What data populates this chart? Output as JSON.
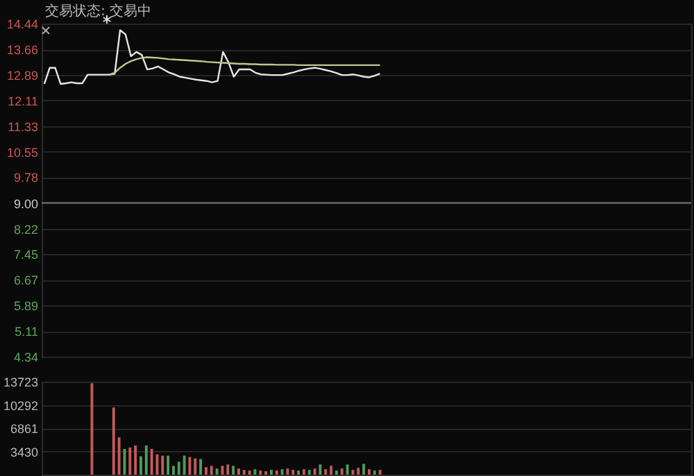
{
  "chart_data": [
    {
      "type": "line",
      "annotations": [
        "交易状态: 交易中"
      ],
      "categories": [
        null,
        null,
        null,
        null,
        null,
        null,
        null,
        null,
        null,
        null,
        null,
        null,
        null,
        null,
        null,
        null,
        null,
        null,
        null,
        null,
        null,
        null,
        null,
        null,
        null,
        null,
        null,
        null,
        null,
        null,
        null,
        null,
        null,
        null,
        null,
        null,
        null,
        null,
        null,
        null,
        null,
        null,
        null,
        null,
        null,
        null,
        null,
        null,
        null,
        null,
        null,
        null,
        null,
        null,
        null,
        null,
        null,
        null,
        null,
        null,
        null,
        null,
        null,
        null,
        null,
        null,
        null,
        null,
        null,
        null,
        null,
        null,
        null,
        null,
        null,
        null,
        null,
        null,
        null,
        null,
        null,
        null,
        null,
        null,
        null,
        null,
        null,
        null,
        null,
        null,
        null,
        null,
        null,
        null,
        null,
        null,
        null,
        null,
        null,
        null,
        null,
        null,
        null,
        null,
        null,
        null,
        null,
        null,
        null,
        null,
        null,
        null,
        null,
        null,
        null,
        null,
        null,
        null,
        null,
        null
      ],
      "series": [
        {
          "color": "#e6e6e6",
          "values": [
            12.61,
            13.1,
            13.1,
            12.61,
            12.63,
            12.66,
            12.63,
            12.63,
            12.89,
            12.89,
            12.89,
            12.89,
            12.89,
            12.92,
            14.24,
            14.11,
            13.45,
            13.58,
            13.49,
            13.05,
            13.08,
            13.14,
            13.05,
            12.96,
            12.9,
            12.83,
            12.8,
            12.77,
            12.74,
            12.72,
            12.7,
            12.66,
            12.7,
            13.58,
            13.27,
            12.83,
            13.05,
            13.05,
            13.05,
            12.95,
            12.9,
            12.89,
            12.88,
            12.88,
            12.88,
            12.92,
            12.96,
            13.01,
            13.05,
            13.08,
            13.1,
            13.07,
            13.03,
            12.99,
            12.94,
            12.88,
            12.88,
            12.9,
            12.87,
            12.83,
            12.81,
            12.86,
            12.92,
            null,
            null,
            null,
            null,
            null,
            null,
            null,
            null,
            null,
            null,
            null,
            null,
            null,
            null,
            null,
            null,
            null,
            null,
            null,
            null,
            null,
            null,
            null,
            null,
            null,
            null,
            null,
            null,
            null,
            null,
            null,
            null,
            null,
            null,
            null,
            null,
            null,
            null,
            null,
            null,
            null,
            null,
            null,
            null,
            null,
            null,
            null,
            null,
            null,
            null,
            null,
            null,
            null,
            null,
            null,
            null,
            null
          ]
        },
        {
          "color": "#c9c58f",
          "values": [
            null,
            null,
            null,
            null,
            null,
            null,
            null,
            null,
            null,
            null,
            null,
            null,
            12.89,
            12.95,
            13.1,
            13.22,
            13.3,
            13.36,
            13.4,
            13.42,
            13.41,
            13.4,
            13.38,
            13.36,
            13.35,
            13.34,
            13.33,
            13.32,
            13.31,
            13.3,
            13.28,
            13.27,
            13.26,
            13.25,
            13.24,
            13.23,
            13.22,
            13.22,
            13.21,
            13.21,
            13.2,
            13.2,
            13.2,
            13.19,
            13.19,
            13.19,
            13.19,
            13.18,
            13.18,
            13.18,
            13.18,
            13.18,
            13.18,
            13.18,
            13.18,
            13.18,
            13.18,
            13.18,
            13.18,
            13.18,
            13.18,
            13.18,
            13.18,
            null,
            null,
            null,
            null,
            null,
            null,
            null,
            null,
            null,
            null,
            null,
            null,
            null,
            null,
            null,
            null,
            null,
            null,
            null,
            null,
            null,
            null,
            null,
            null,
            null,
            null,
            null,
            null,
            null,
            null,
            null,
            null,
            null,
            null,
            null,
            null,
            null,
            null,
            null,
            null,
            null,
            null,
            null,
            null,
            null,
            null,
            null,
            null,
            null,
            null,
            null,
            null,
            null,
            null,
            null,
            null,
            null
          ]
        }
      ],
      "ylim": [
        4.34,
        14.44
      ],
      "yticks": [
        4.34,
        5.11,
        5.89,
        6.67,
        7.45,
        8.22,
        {
          "value": 9,
          "label": "9.00"
        },
        9.78,
        10.55,
        11.33,
        12.11,
        12.89,
        13.66,
        14.44
      ],
      "grid": "y",
      "tick_labels": "y",
      "ref_lines": [
        {
          "axis": "y",
          "value": 9.0,
          "color": "#5a5a5a"
        }
      ]
    },
    {
      "type": "bar",
      "categories": [
        null,
        null,
        null,
        null,
        null,
        null,
        null,
        null,
        null,
        null,
        null,
        null,
        null,
        null,
        null,
        null,
        null,
        null,
        null,
        null,
        null,
        null,
        null,
        null,
        null,
        null,
        null,
        null,
        null,
        null,
        null,
        null,
        null,
        null,
        null,
        null,
        null,
        null,
        null,
        null,
        null,
        null,
        null,
        null,
        null,
        null,
        null,
        null,
        null,
        null,
        null,
        null,
        null,
        null,
        null,
        null,
        null,
        null,
        null,
        null,
        null,
        null,
        null,
        null,
        null,
        null,
        null,
        null,
        null,
        null,
        null,
        null,
        null,
        null,
        null,
        null,
        null,
        null,
        null,
        null,
        null,
        null,
        null,
        null,
        null,
        null,
        null,
        null,
        null,
        null,
        null,
        null,
        null,
        null,
        null,
        null,
        null,
        null,
        null,
        null,
        null,
        null,
        null,
        null,
        null,
        null,
        null,
        null,
        null,
        null,
        null,
        null,
        null,
        null,
        null,
        null,
        null,
        null,
        null,
        null
      ],
      "values": [
        null,
        null,
        null,
        null,
        null,
        null,
        null,
        null,
        null,
        13500,
        null,
        null,
        null,
        9900,
        5500,
        3800,
        4000,
        4300,
        2700,
        4300,
        3800,
        3000,
        2800,
        2800,
        1300,
        1900,
        2800,
        2600,
        2400,
        2300,
        1100,
        1300,
        900,
        1300,
        1500,
        1300,
        900,
        700,
        600,
        800,
        600,
        500,
        700,
        600,
        800,
        900,
        700,
        600,
        800,
        700,
        900,
        1500,
        800,
        1300,
        600,
        900,
        1500,
        700,
        1000,
        1600,
        800,
        600,
        700,
        null,
        null,
        null,
        null,
        null,
        null,
        null,
        null,
        null,
        null,
        null,
        null,
        null,
        null,
        null,
        null,
        null,
        null,
        null,
        null,
        null,
        null,
        null,
        null,
        null,
        null,
        null,
        null,
        null,
        null,
        null,
        null,
        null,
        null,
        null,
        null,
        null,
        null,
        null,
        null,
        null,
        null,
        null,
        null,
        null,
        null,
        null,
        null,
        null,
        null,
        null,
        null,
        null,
        null,
        null,
        null,
        null
      ],
      "colors": [
        null,
        null,
        null,
        null,
        null,
        null,
        null,
        null,
        null,
        "#c35a5a",
        null,
        null,
        null,
        "#c35a5a",
        "#c35a5a",
        "#4f9a5a",
        "#c35a5a",
        "#c35a5a",
        "#4f9a5a",
        "#4f9a5a",
        "#c35a5a",
        "#c35a5a",
        "#c35a5a",
        "#4f9a5a",
        "#4f9a5a",
        "#4f9a5a",
        "#4f9a5a",
        "#c35a5a",
        "#c35a5a",
        "#4f9a5a",
        "#c35a5a",
        "#c35a5a",
        "#4f9a5a",
        "#c35a5a",
        "#c35a5a",
        "#4f9a5a",
        "#c35a5a",
        "#c35a5a",
        "#c35a5a",
        "#4f9a5a",
        "#c35a5a",
        "#c35a5a",
        "#4f9a5a",
        "#c35a5a",
        "#4f9a5a",
        "#c35a5a",
        "#c35a5a",
        "#4f9a5a",
        "#c35a5a",
        "#4f9a5a",
        "#c35a5a",
        "#4f9a5a",
        "#c35a5a",
        "#c35a5a",
        "#4f9a5a",
        "#c35a5a",
        "#4f9a5a",
        "#c35a5a",
        "#c35a5a",
        "#4f9a5a",
        "#c35a5a",
        "#4f9a5a",
        "#c35a5a",
        null,
        null,
        null,
        null,
        null,
        null,
        null,
        null,
        null,
        null,
        null,
        null,
        null,
        null,
        null,
        null,
        null,
        null,
        null,
        null,
        null,
        null,
        null,
        null,
        null,
        null,
        null,
        null,
        null,
        null,
        null,
        null,
        null,
        null,
        null,
        null,
        null,
        null,
        null,
        null,
        null,
        null,
        null,
        null,
        null,
        null,
        null,
        null,
        null,
        null,
        null,
        null,
        null,
        null,
        null,
        null,
        null
      ],
      "ylim": [
        0,
        13723
      ],
      "yticks": [
        3430,
        6861,
        10292,
        13723
      ],
      "grid": "y",
      "tick_labels": "y"
    }
  ]
}
